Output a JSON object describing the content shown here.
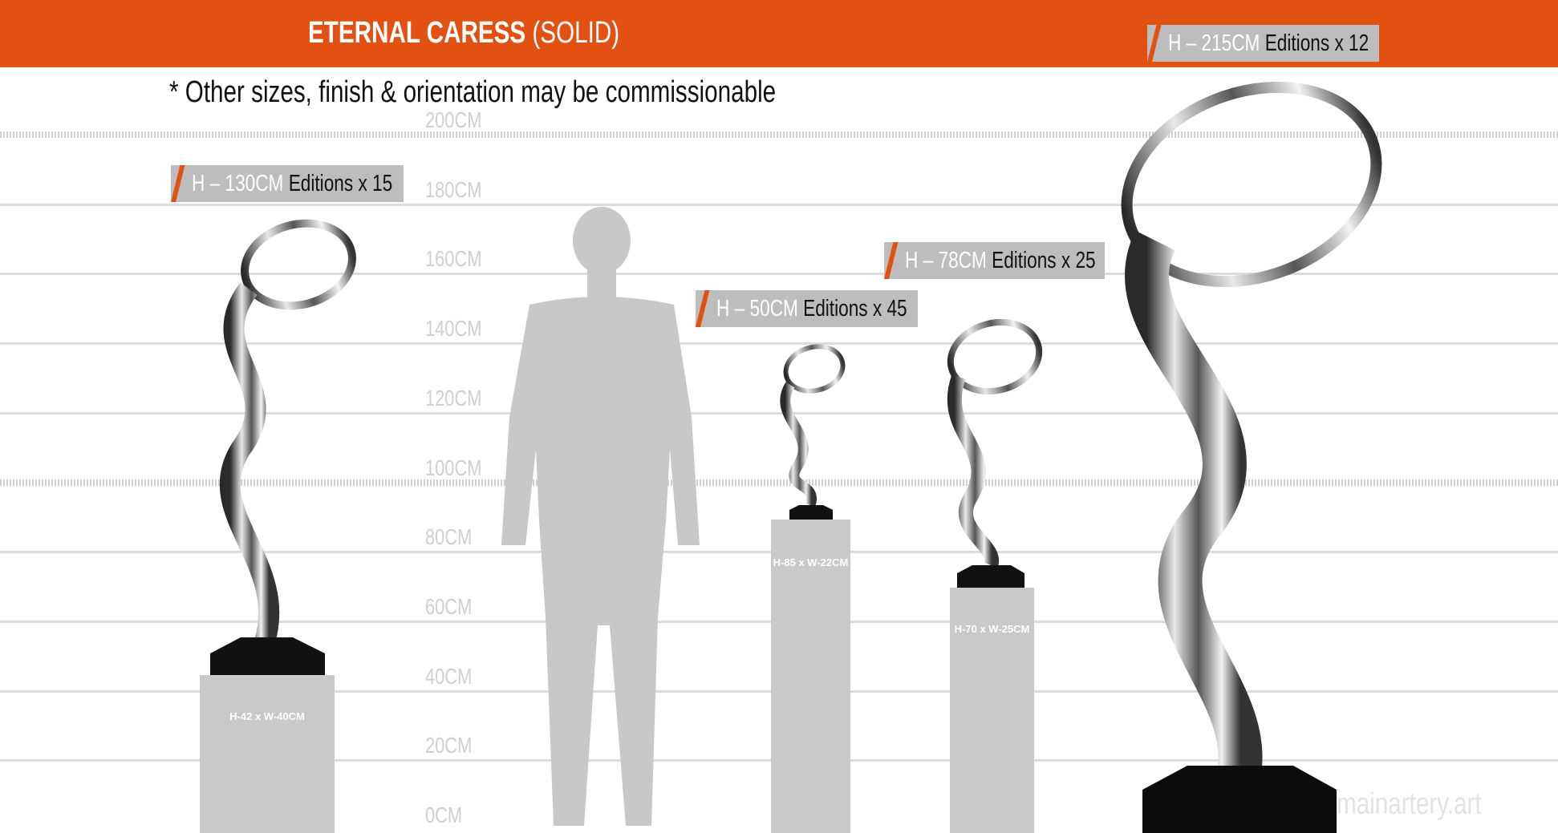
{
  "header": {
    "title_bold": "ETERNAL CARESS",
    "title_light": "(SOLID)",
    "accent_color": "#e35112"
  },
  "subtitle": "* Other sizes, finish & orientation may be commissionable",
  "scale_labels": [
    "200CM",
    "180CM",
    "160CM",
    "140CM",
    "120CM",
    "100CM",
    "80CM",
    "60CM",
    "40CM",
    "20CM",
    "0CM"
  ],
  "sizes": [
    {
      "height": "H – 215CM",
      "editions": "Editions x 12"
    },
    {
      "height": "H – 130CM",
      "editions": "Editions x 15"
    },
    {
      "height": "H – 78CM",
      "editions": "Editions x 25"
    },
    {
      "height": "H – 50CM",
      "editions": "Editions x 45"
    }
  ],
  "pedestals": [
    {
      "label": "H-42 x W-40CM"
    },
    {
      "label": "H-85 x W-22CM"
    },
    {
      "label": "H-70 x W-25CM"
    }
  ],
  "watermark": "mainartery.art"
}
